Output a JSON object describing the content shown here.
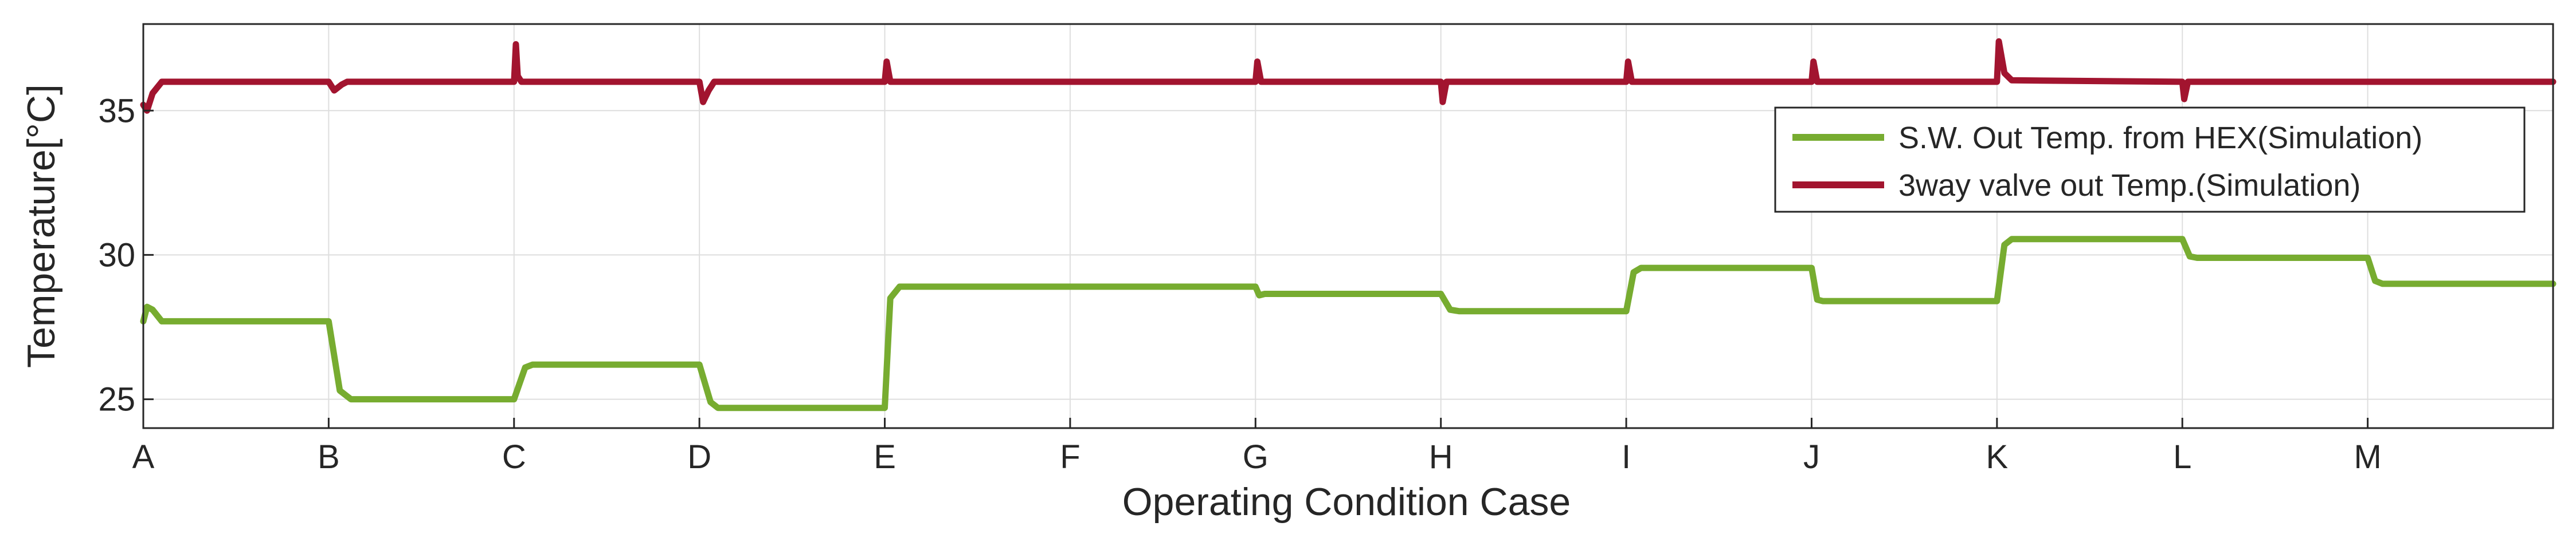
{
  "chart_data": {
    "type": "line",
    "xlabel": "Operating Condition Case",
    "ylabel": "Temperature[°C]",
    "x_tick_labels": [
      "A",
      "B",
      "C",
      "D",
      "E",
      "F",
      "G",
      "H",
      "I",
      "J",
      "K",
      "L",
      "M"
    ],
    "x_range": [
      0,
      13
    ],
    "ylim": [
      24,
      38
    ],
    "y_ticks": [
      25,
      30,
      35
    ],
    "grid": true,
    "legend_position": "upper right",
    "series": [
      {
        "name": "S.W. Out Temp. from HEX(Simulation)",
        "color": "#77AC30",
        "points": [
          [
            0,
            27.7
          ],
          [
            0.02,
            28.2
          ],
          [
            0.05,
            28.1
          ],
          [
            0.1,
            27.7
          ],
          [
            1.0,
            27.7
          ],
          [
            1.06,
            25.3
          ],
          [
            1.12,
            25.0
          ],
          [
            2.0,
            25.0
          ],
          [
            2.06,
            26.1
          ],
          [
            2.1,
            26.2
          ],
          [
            3.0,
            26.2
          ],
          [
            3.06,
            24.9
          ],
          [
            3.1,
            24.7
          ],
          [
            4.0,
            24.7
          ],
          [
            4.03,
            28.5
          ],
          [
            4.08,
            28.9
          ],
          [
            6.0,
            28.9
          ],
          [
            6.02,
            28.6
          ],
          [
            6.05,
            28.65
          ],
          [
            7.0,
            28.65
          ],
          [
            7.05,
            28.1
          ],
          [
            7.1,
            28.05
          ],
          [
            8.0,
            28.05
          ],
          [
            8.04,
            29.4
          ],
          [
            8.08,
            29.55
          ],
          [
            9.0,
            29.55
          ],
          [
            9.03,
            28.45
          ],
          [
            9.06,
            28.4
          ],
          [
            10.0,
            28.4
          ],
          [
            10.04,
            30.35
          ],
          [
            10.08,
            30.55
          ],
          [
            11.0,
            30.55
          ],
          [
            11.04,
            29.95
          ],
          [
            11.08,
            29.9
          ],
          [
            12.0,
            29.9
          ],
          [
            12.04,
            29.1
          ],
          [
            12.08,
            29.0
          ],
          [
            13.0,
            29.0
          ]
        ]
      },
      {
        "name": "3way valve out Temp.(Simulation)",
        "color": "#A2142F",
        "points": [
          [
            0,
            35.2
          ],
          [
            0.02,
            35.0
          ],
          [
            0.05,
            35.6
          ],
          [
            0.1,
            36.0
          ],
          [
            1.0,
            36.0
          ],
          [
            1.03,
            35.7
          ],
          [
            1.07,
            35.9
          ],
          [
            1.1,
            36.0
          ],
          [
            2.0,
            36.0
          ],
          [
            2.01,
            37.3
          ],
          [
            2.02,
            36.2
          ],
          [
            2.04,
            36.0
          ],
          [
            3.0,
            36.0
          ],
          [
            3.02,
            35.3
          ],
          [
            3.05,
            35.7
          ],
          [
            3.08,
            36.0
          ],
          [
            4.0,
            36.0
          ],
          [
            4.01,
            36.7
          ],
          [
            4.03,
            36.0
          ],
          [
            6.0,
            36.0
          ],
          [
            6.01,
            36.7
          ],
          [
            6.03,
            36.0
          ],
          [
            7.0,
            36.0
          ],
          [
            7.01,
            35.3
          ],
          [
            7.03,
            36.0
          ],
          [
            8.0,
            36.0
          ],
          [
            8.01,
            36.7
          ],
          [
            8.03,
            36.0
          ],
          [
            9.0,
            36.0
          ],
          [
            9.01,
            36.7
          ],
          [
            9.03,
            36.0
          ],
          [
            10.0,
            36.0
          ],
          [
            10.01,
            37.4
          ],
          [
            10.04,
            36.3
          ],
          [
            10.08,
            36.05
          ],
          [
            11.0,
            36.0
          ],
          [
            11.01,
            35.4
          ],
          [
            11.03,
            36.0
          ],
          [
            13.0,
            36.0
          ]
        ]
      }
    ]
  }
}
